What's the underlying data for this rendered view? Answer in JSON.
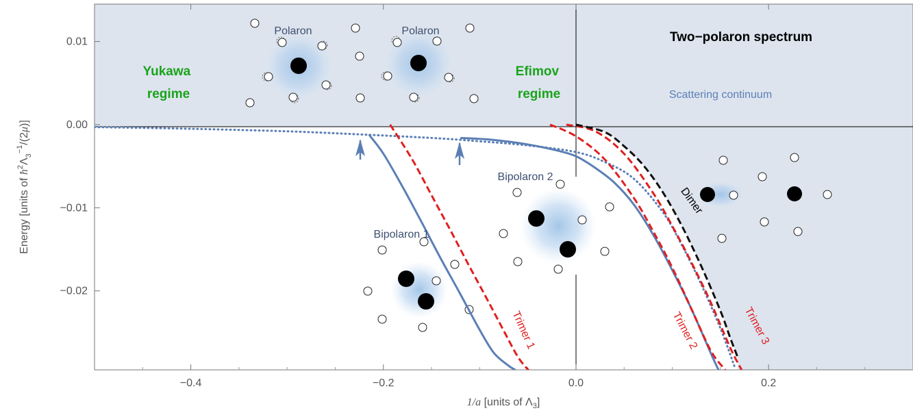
{
  "chart_data": {
    "type": "line",
    "title": "Two−polaron spectrum",
    "xlabel": "1/a  [units of Λ₃]",
    "ylabel": "Energy [units of ħ²Λ₃⁻¹/(2μ)]",
    "xlim": [
      -0.5,
      0.35
    ],
    "ylim": [
      -0.0295,
      0.0145
    ],
    "grid": false,
    "x_ticks": [
      {
        "value": -0.4,
        "label": "−0.4"
      },
      {
        "value": -0.2,
        "label": "−0.2"
      },
      {
        "value": 0.0,
        "label": "0.0"
      },
      {
        "value": 0.2,
        "label": "0.2"
      }
    ],
    "y_ticks": [
      {
        "value": 0.01,
        "label": "0.01"
      },
      {
        "value": 0.0,
        "label": "0.00"
      },
      {
        "value": -0.01,
        "label": "−0.01"
      },
      {
        "value": -0.02,
        "label": "−0.02"
      }
    ],
    "series": [
      {
        "style": "solid",
        "color": "#5b7fb5",
        "x": [
          -0.215,
          -0.2,
          -0.18,
          -0.16,
          -0.14,
          -0.12,
          -0.1,
          -0.085,
          -0.07,
          -0.063
        ],
        "y": [
          -0.0012,
          -0.0035,
          -0.0075,
          -0.0118,
          -0.0162,
          -0.0204,
          -0.0247,
          -0.0275,
          -0.029,
          -0.0295
        ]
      },
      {
        "style": "solid",
        "color": "#5b7fb5",
        "x": [
          -0.12,
          -0.09,
          -0.06,
          -0.04,
          -0.02,
          0.0,
          0.02,
          0.04,
          0.06,
          0.08,
          0.1,
          0.12,
          0.14,
          0.148
        ],
        "y": [
          -0.0016,
          -0.0018,
          -0.0022,
          -0.0026,
          -0.0031,
          -0.0038,
          -0.0052,
          -0.007,
          -0.0096,
          -0.0132,
          -0.0175,
          -0.0222,
          -0.0275,
          -0.0295
        ]
      },
      {
        "style": "dotted",
        "color": "#5b7fb5",
        "x": [
          -0.5,
          -0.4,
          -0.3,
          -0.22,
          -0.15,
          -0.1,
          -0.05,
          0.0,
          0.03,
          0.06,
          0.09,
          0.11,
          0.13,
          0.15,
          0.165
        ],
        "y": [
          -0.0003,
          -0.0005,
          -0.0008,
          -0.0012,
          -0.0016,
          -0.002,
          -0.0025,
          -0.0033,
          -0.0045,
          -0.0065,
          -0.0105,
          -0.0145,
          -0.0192,
          -0.0245,
          -0.0292
        ]
      },
      {
        "style": "dashed",
        "color": "#e02020",
        "x": [
          -0.193,
          -0.17,
          -0.15,
          -0.13,
          -0.11,
          -0.09,
          -0.075,
          -0.06,
          -0.048
        ],
        "y": [
          0.0,
          -0.0042,
          -0.0085,
          -0.0128,
          -0.0172,
          -0.0215,
          -0.0248,
          -0.028,
          -0.0297
        ]
      },
      {
        "style": "dashed",
        "color": "#e02020",
        "x": [
          -0.027,
          0.0,
          0.03,
          0.06,
          0.08,
          0.1,
          0.12,
          0.14,
          0.155
        ],
        "y": [
          0.0,
          -0.0014,
          -0.0042,
          -0.0088,
          -0.0128,
          -0.0172,
          -0.0222,
          -0.0272,
          -0.0295
        ]
      },
      {
        "style": "dashed",
        "color": "#e02020",
        "x": [
          -0.01,
          0.02,
          0.05,
          0.08,
          0.1,
          0.12,
          0.14,
          0.16,
          0.172
        ],
        "y": [
          0.0,
          -0.0008,
          -0.0035,
          -0.0082,
          -0.0122,
          -0.0166,
          -0.0214,
          -0.0268,
          -0.0295
        ]
      },
      {
        "style": "dashed",
        "color": "#111111",
        "x": [
          0.0,
          0.03,
          0.05,
          0.07,
          0.09,
          0.11,
          0.13,
          0.15,
          0.16,
          0.168
        ],
        "y": [
          0.0,
          -0.0009,
          -0.0026,
          -0.0049,
          -0.0081,
          -0.0122,
          -0.017,
          -0.0224,
          -0.0256,
          -0.028
        ]
      }
    ],
    "annotations": {
      "title": "Two−polaron spectrum",
      "yukawa": "Yukawa\nregime",
      "efimov": "Efimov\nregime",
      "polaron_left": "Polaron",
      "polaron_right": "Polaron",
      "scattering": "Scattering continuum",
      "bipolaron1": "Bipolaron 1",
      "bipolaron2": "Bipolaron 2",
      "dimer": "Dimer",
      "trimer1": "Trimer 1",
      "trimer2": "Trimer 2",
      "trimer3": "Trimer 3"
    },
    "colors": {
      "shade": "#dde4ee",
      "blue_line": "#5b7fb5",
      "red_dashed": "#e02020",
      "regime_green": "#1aa31a",
      "label_navy": "#3d4f70",
      "scattering_text": "#5b7fb5"
    }
  }
}
